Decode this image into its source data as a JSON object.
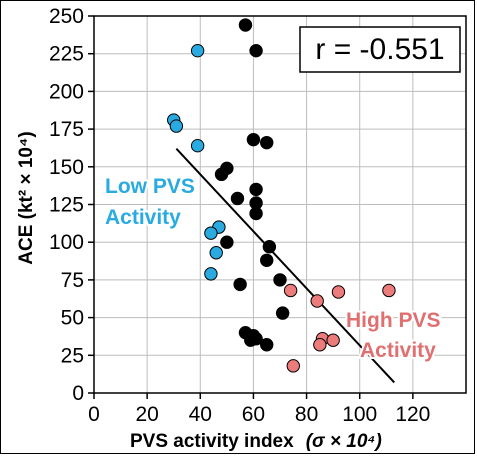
{
  "chart_data": {
    "type": "scatter",
    "xlabel": "PVS activity index",
    "xlabel_unit": "(σ × 10⁴)",
    "ylabel": "ACE (kt² × 10⁴)",
    "xlim": [
      0,
      140
    ],
    "ylim": [
      0,
      250
    ],
    "x_ticks": [
      0,
      20,
      40,
      60,
      80,
      100,
      120
    ],
    "y_ticks": [
      0,
      25,
      50,
      75,
      100,
      125,
      150,
      175,
      200,
      225,
      250
    ],
    "grid": true,
    "correlation_label": "r = -0.551",
    "regression_line": {
      "x": [
        31,
        113
      ],
      "y": [
        162,
        7
      ]
    },
    "annotations": [
      {
        "text_lines": [
          "Low PVS",
          "Activity"
        ],
        "color": "#29abe2"
      },
      {
        "text_lines": [
          "High PVS",
          "Activity"
        ],
        "color": "#e07070"
      }
    ],
    "series": [
      {
        "group": "low",
        "color": "#29abe2",
        "points": [
          {
            "x": 39,
            "y": 227
          },
          {
            "x": 30,
            "y": 181
          },
          {
            "x": 31,
            "y": 177
          },
          {
            "x": 39,
            "y": 164
          },
          {
            "x": 47,
            "y": 110
          },
          {
            "x": 44,
            "y": 106
          },
          {
            "x": 46,
            "y": 93
          },
          {
            "x": 44,
            "y": 79
          }
        ]
      },
      {
        "group": "mid",
        "color": "#000000",
        "points": [
          {
            "x": 57,
            "y": 244
          },
          {
            "x": 61,
            "y": 227
          },
          {
            "x": 60,
            "y": 168
          },
          {
            "x": 65,
            "y": 166
          },
          {
            "x": 48,
            "y": 145
          },
          {
            "x": 50,
            "y": 149
          },
          {
            "x": 61,
            "y": 135
          },
          {
            "x": 54,
            "y": 129
          },
          {
            "x": 61,
            "y": 126
          },
          {
            "x": 61,
            "y": 119
          },
          {
            "x": 50,
            "y": 100
          },
          {
            "x": 66,
            "y": 97
          },
          {
            "x": 65,
            "y": 88
          },
          {
            "x": 70,
            "y": 75
          },
          {
            "x": 55,
            "y": 72
          },
          {
            "x": 71,
            "y": 53
          },
          {
            "x": 57,
            "y": 40
          },
          {
            "x": 60,
            "y": 38
          },
          {
            "x": 59,
            "y": 35
          },
          {
            "x": 61,
            "y": 36
          },
          {
            "x": 65,
            "y": 32
          }
        ]
      },
      {
        "group": "high",
        "color": "#ec7b7b",
        "points": [
          {
            "x": 111,
            "y": 68
          },
          {
            "x": 92,
            "y": 67
          },
          {
            "x": 74,
            "y": 68
          },
          {
            "x": 84,
            "y": 61
          },
          {
            "x": 86,
            "y": 36
          },
          {
            "x": 90,
            "y": 35
          },
          {
            "x": 85,
            "y": 32
          },
          {
            "x": 75,
            "y": 18
          }
        ]
      }
    ]
  }
}
